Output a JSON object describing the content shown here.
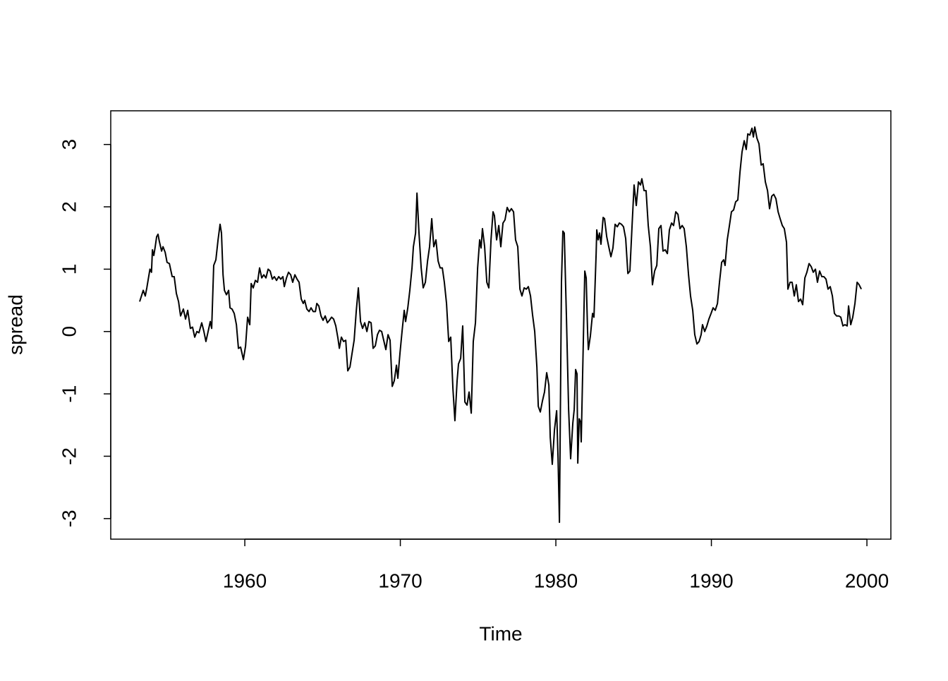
{
  "chart_data": {
    "type": "line",
    "xlabel": "Time",
    "ylabel": "spread",
    "color": "#000000",
    "xlim": [
      1951.38,
      2001.54
    ],
    "ylim": [
      -3.33,
      3.54
    ],
    "xticks": [
      1960,
      1970,
      1980,
      1990,
      2000
    ],
    "yticks": [
      -3,
      -2,
      -1,
      0,
      1,
      2,
      3
    ],
    "x": [
      1953.24,
      1953.47,
      1953.6,
      1953.7,
      1953.9,
      1954.0,
      1954.06,
      1954.15,
      1954.24,
      1954.33,
      1954.42,
      1954.5,
      1954.65,
      1954.74,
      1954.88,
      1955.0,
      1955.15,
      1955.33,
      1955.46,
      1955.6,
      1955.74,
      1955.87,
      1956.05,
      1956.19,
      1956.33,
      1956.5,
      1956.64,
      1956.78,
      1956.92,
      1957.05,
      1957.23,
      1957.37,
      1957.5,
      1957.64,
      1957.78,
      1957.87,
      1958.0,
      1958.14,
      1958.28,
      1958.41,
      1958.5,
      1958.6,
      1958.69,
      1958.82,
      1958.96,
      1959.05,
      1959.18,
      1959.32,
      1959.46,
      1959.59,
      1959.73,
      1959.91,
      1960.05,
      1960.18,
      1960.32,
      1960.41,
      1960.54,
      1960.68,
      1960.82,
      1960.95,
      1961.09,
      1961.22,
      1961.36,
      1961.5,
      1961.63,
      1961.77,
      1961.9,
      1962.04,
      1962.18,
      1962.31,
      1962.45,
      1962.54,
      1962.68,
      1962.81,
      1962.95,
      1963.08,
      1963.22,
      1963.36,
      1963.49,
      1963.63,
      1963.76,
      1963.85,
      1963.99,
      1964.13,
      1964.26,
      1964.4,
      1964.54,
      1964.63,
      1964.76,
      1964.9,
      1965.03,
      1965.17,
      1965.31,
      1965.44,
      1965.58,
      1965.71,
      1965.85,
      1965.99,
      1966.08,
      1966.21,
      1966.35,
      1966.49,
      1966.62,
      1966.76,
      1966.89,
      1967.03,
      1967.17,
      1967.3,
      1967.44,
      1967.57,
      1967.71,
      1967.85,
      1967.98,
      1968.12,
      1968.25,
      1968.39,
      1968.53,
      1968.66,
      1968.8,
      1968.93,
      1969.07,
      1969.21,
      1969.34,
      1969.48,
      1969.61,
      1969.75,
      1969.84,
      1969.98,
      1970.11,
      1970.25,
      1970.34,
      1970.48,
      1970.61,
      1970.75,
      1970.84,
      1970.98,
      1971.07,
      1971.2,
      1971.34,
      1971.47,
      1971.61,
      1971.75,
      1971.88,
      1972.02,
      1972.15,
      1972.29,
      1972.43,
      1972.56,
      1972.7,
      1972.83,
      1972.97,
      1973.11,
      1973.24,
      1973.38,
      1973.51,
      1973.65,
      1973.74,
      1973.88,
      1974.01,
      1974.15,
      1974.29,
      1974.42,
      1974.56,
      1974.69,
      1974.83,
      1974.97,
      1975.1,
      1975.19,
      1975.28,
      1975.42,
      1975.56,
      1975.69,
      1975.83,
      1975.96,
      1976.05,
      1976.19,
      1976.33,
      1976.46,
      1976.6,
      1976.73,
      1976.87,
      1977.01,
      1977.14,
      1977.28,
      1977.41,
      1977.55,
      1977.69,
      1977.82,
      1977.96,
      1978.1,
      1978.23,
      1978.37,
      1978.5,
      1978.64,
      1978.78,
      1978.87,
      1979.0,
      1979.14,
      1979.27,
      1979.41,
      1979.55,
      1979.64,
      1979.77,
      1979.91,
      1980.05,
      1980.14,
      1980.23,
      1980.36,
      1980.45,
      1980.54,
      1980.68,
      1980.82,
      1980.95,
      1981.09,
      1981.18,
      1981.27,
      1981.36,
      1981.41,
      1981.5,
      1981.59,
      1981.63,
      1981.77,
      1981.86,
      1981.95,
      1982.04,
      1982.09,
      1982.22,
      1982.36,
      1982.45,
      1982.59,
      1982.63,
      1982.72,
      1982.81,
      1982.9,
      1983.04,
      1983.13,
      1983.27,
      1983.4,
      1983.54,
      1983.67,
      1983.81,
      1983.95,
      1984.08,
      1984.22,
      1984.35,
      1984.49,
      1984.63,
      1984.76,
      1984.9,
      1985.03,
      1985.17,
      1985.31,
      1985.44,
      1985.53,
      1985.67,
      1985.8,
      1985.94,
      1986.08,
      1986.21,
      1986.35,
      1986.49,
      1986.62,
      1986.76,
      1986.89,
      1987.03,
      1987.17,
      1987.3,
      1987.44,
      1987.57,
      1987.71,
      1987.85,
      1987.98,
      1988.12,
      1988.25,
      1988.39,
      1988.53,
      1988.66,
      1988.8,
      1988.93,
      1989.07,
      1989.21,
      1989.34,
      1989.43,
      1989.57,
      1989.71,
      1989.84,
      1989.98,
      1990.11,
      1990.25,
      1990.39,
      1990.52,
      1990.66,
      1990.79,
      1990.88,
      1991.02,
      1991.16,
      1991.29,
      1991.43,
      1991.56,
      1991.7,
      1991.84,
      1991.97,
      1992.11,
      1992.24,
      1992.34,
      1992.47,
      1992.61,
      1992.7,
      1992.79,
      1992.93,
      1993.06,
      1993.2,
      1993.33,
      1993.47,
      1993.61,
      1993.74,
      1993.88,
      1994.01,
      1994.15,
      1994.29,
      1994.42,
      1994.56,
      1994.69,
      1994.83,
      1994.92,
      1995.06,
      1995.19,
      1995.33,
      1995.46,
      1995.6,
      1995.74,
      1995.87,
      1996.01,
      1996.14,
      1996.28,
      1996.42,
      1996.55,
      1996.69,
      1996.82,
      1996.96,
      1997.1,
      1997.23,
      1997.37,
      1997.5,
      1997.64,
      1997.78,
      1997.91,
      1998.05,
      1998.19,
      1998.32,
      1998.46,
      1998.59,
      1998.73,
      1998.82,
      1998.96,
      1999.09,
      1999.23,
      1999.37,
      1999.5,
      1999.64
    ],
    "values": [
      0.48,
      0.66,
      0.57,
      0.7,
      1.0,
      0.95,
      1.31,
      1.22,
      1.36,
      1.52,
      1.56,
      1.45,
      1.29,
      1.36,
      1.27,
      1.11,
      1.09,
      0.88,
      0.88,
      0.61,
      0.48,
      0.25,
      0.36,
      0.2,
      0.34,
      0.05,
      0.07,
      -0.09,
      0,
      -0.02,
      0.14,
      0,
      -0.16,
      0,
      0.16,
      0.05,
      1.06,
      1.15,
      1.47,
      1.72,
      1.58,
      0.91,
      0.66,
      0.59,
      0.66,
      0.38,
      0.36,
      0.29,
      0.11,
      -0.27,
      -0.25,
      -0.45,
      -0.23,
      0.23,
      0.11,
      0.77,
      0.7,
      0.82,
      0.79,
      1.02,
      0.86,
      0.91,
      0.86,
      1.0,
      0.97,
      0.84,
      0.88,
      0.82,
      0.88,
      0.84,
      0.88,
      0.72,
      0.86,
      0.95,
      0.91,
      0.79,
      0.91,
      0.84,
      0.79,
      0.52,
      0.45,
      0.5,
      0.36,
      0.32,
      0.38,
      0.32,
      0.32,
      0.45,
      0.41,
      0.25,
      0.18,
      0.25,
      0.14,
      0.18,
      0.23,
      0.2,
      0.09,
      -0.11,
      -0.27,
      -0.09,
      -0.16,
      -0.14,
      -0.63,
      -0.57,
      -0.36,
      -0.14,
      0.34,
      0.7,
      0.16,
      0.05,
      0.14,
      0,
      0.16,
      0.14,
      -0.27,
      -0.23,
      -0.05,
      0.02,
      0,
      -0.14,
      -0.29,
      -0.05,
      -0.14,
      -0.88,
      -0.79,
      -0.54,
      -0.75,
      -0.34,
      0,
      0.34,
      0.16,
      0.38,
      0.66,
      1.02,
      1.36,
      1.58,
      2.22,
      1.58,
      1.02,
      0.7,
      0.79,
      1.13,
      1.36,
      1.81,
      1.36,
      1.47,
      1.13,
      1.02,
      1.02,
      0.79,
      0.45,
      -0.16,
      -0.09,
      -0.91,
      -1.43,
      -0.79,
      -0.52,
      -0.43,
      0.09,
      -1.13,
      -1.18,
      -0.97,
      -1.31,
      -0.16,
      0.14,
      1.02,
      1.47,
      1.34,
      1.65,
      1.36,
      0.79,
      0.7,
      1.47,
      1.92,
      1.86,
      1.47,
      1.7,
      1.36,
      1.74,
      1.79,
      1.99,
      1.92,
      1.97,
      1.92,
      1.47,
      1.36,
      0.68,
      0.57,
      0.7,
      0.68,
      0.72,
      0.57,
      0.27,
      0,
      -0.57,
      -1.2,
      -1.29,
      -1.11,
      -0.97,
      -0.66,
      -0.86,
      -1.7,
      -2.13,
      -1.58,
      -1.27,
      -2.02,
      -3.06,
      0.79,
      1.61,
      1.58,
      0.23,
      -1.25,
      -2.04,
      -1.47,
      -1.25,
      -0.61,
      -0.68,
      -2.11,
      -1.4,
      -1.45,
      -1.77,
      -0.11,
      0.97,
      0.86,
      0,
      -0.29,
      -0.07,
      0.29,
      0.23,
      1.25,
      1.63,
      1.47,
      1.58,
      1.4,
      1.83,
      1.81,
      1.52,
      1.36,
      1.2,
      1.34,
      1.72,
      1.68,
      1.74,
      1.72,
      1.68,
      1.49,
      0.93,
      0.97,
      1.7,
      2.35,
      2.02,
      2.4,
      2.35,
      2.45,
      2.26,
      2.26,
      1.7,
      1.36,
      0.75,
      0.97,
      1.06,
      1.65,
      1.7,
      1.29,
      1.31,
      1.25,
      1.63,
      1.74,
      1.7,
      1.92,
      1.88,
      1.65,
      1.7,
      1.65,
      1.36,
      0.91,
      0.57,
      0.34,
      -0.05,
      -0.2,
      -0.16,
      -0.05,
      0.11,
      0,
      0.09,
      0.2,
      0.29,
      0.38,
      0.34,
      0.45,
      0.79,
      1.11,
      1.15,
      1.06,
      1.47,
      1.7,
      1.92,
      1.95,
      2.08,
      2.11,
      2.56,
      2.88,
      3.06,
      2.92,
      3.17,
      3.15,
      3.26,
      3.12,
      3.28,
      3.1,
      3.01,
      2.67,
      2.69,
      2.4,
      2.26,
      1.97,
      2.17,
      2.2,
      2.13,
      1.92,
      1.81,
      1.7,
      1.65,
      1.43,
      0.68,
      0.79,
      0.79,
      0.57,
      0.75,
      0.48,
      0.52,
      0.43,
      0.86,
      0.95,
      1.09,
      1.04,
      0.95,
      1.0,
      0.79,
      0.97,
      0.88,
      0.88,
      0.84,
      0.68,
      0.72,
      0.57,
      0.29,
      0.25,
      0.25,
      0.23,
      0.09,
      0.11,
      0.09,
      0.41,
      0.11,
      0.23,
      0.45,
      0.79,
      0.75,
      0.68
    ]
  }
}
